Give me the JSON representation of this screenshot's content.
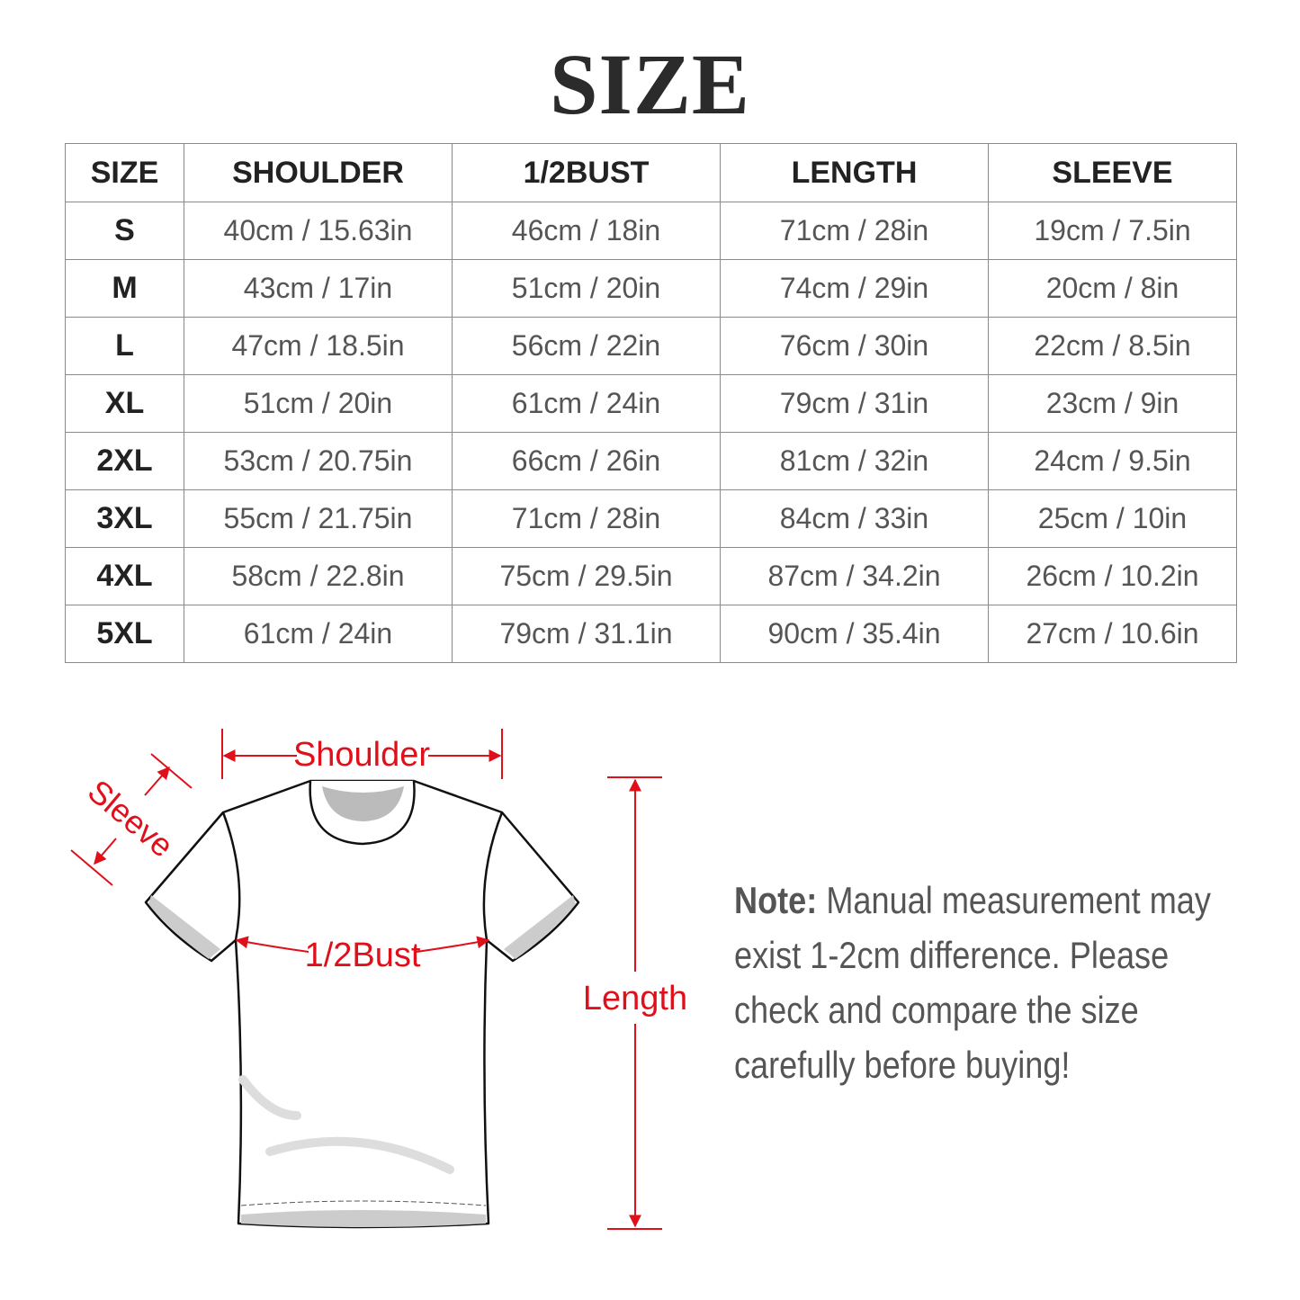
{
  "title": "SIZE",
  "table": {
    "headers": [
      "SIZE",
      "SHOULDER",
      "1/2BUST",
      "LENGTH",
      "SLEEVE"
    ],
    "rows": [
      [
        "S",
        "40cm / 15.63in",
        "46cm / 18in",
        "71cm / 28in",
        "19cm / 7.5in"
      ],
      [
        "M",
        "43cm / 17in",
        "51cm / 20in",
        "74cm / 29in",
        "20cm / 8in"
      ],
      [
        "L",
        "47cm / 18.5in",
        "56cm / 22in",
        "76cm / 30in",
        "22cm / 8.5in"
      ],
      [
        "XL",
        "51cm / 20in",
        "61cm / 24in",
        "79cm / 31in",
        "23cm / 9in"
      ],
      [
        "2XL",
        "53cm / 20.75in",
        "66cm / 26in",
        "81cm / 32in",
        "24cm / 9.5in"
      ],
      [
        "3XL",
        "55cm / 21.75in",
        "71cm / 28in",
        "84cm / 33in",
        "25cm / 10in"
      ],
      [
        "4XL",
        "58cm / 22.8in",
        "75cm / 29.5in",
        "87cm / 34.2in",
        "26cm / 10.2in"
      ],
      [
        "5XL",
        "61cm / 24in",
        "79cm / 31.1in",
        "90cm / 35.4in",
        "27cm / 10.6in"
      ]
    ]
  },
  "diagram": {
    "labels": {
      "shoulder": "Shoulder",
      "sleeve": "Sleeve",
      "bust": "1/2Bust",
      "length": "Length"
    },
    "accent_color": "#e0101a"
  },
  "note": {
    "label": "Note:",
    "text": " Manual measurement may exist 1-2cm difference. Please check and compare the size carefully before buying!"
  }
}
